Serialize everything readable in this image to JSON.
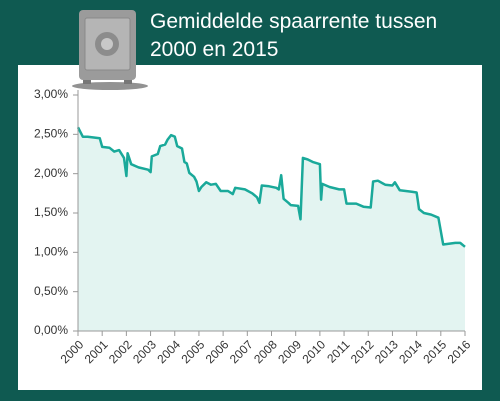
{
  "chart_data": {
    "type": "area",
    "title": "Gemiddelde spaarrente tussen 2000 en 2015",
    "x": [
      2000.0,
      2000.2,
      2000.4,
      2000.9,
      2001.0,
      2001.3,
      2001.5,
      2001.7,
      2001.9,
      2002.0,
      2002.05,
      2002.2,
      2002.5,
      2002.9,
      2003.0,
      2003.05,
      2003.3,
      2003.4,
      2003.6,
      2003.7,
      2003.85,
      2004.0,
      2004.1,
      2004.3,
      2004.4,
      2004.5,
      2004.6,
      2004.8,
      2004.9,
      2005.0,
      2005.1,
      2005.3,
      2005.5,
      2005.7,
      2005.9,
      2006.2,
      2006.4,
      2006.5,
      2006.9,
      2007.2,
      2007.4,
      2007.5,
      2007.6,
      2007.9,
      2008.2,
      2008.3,
      2008.4,
      2008.5,
      2008.7,
      2008.8,
      2009.1,
      2009.2,
      2009.3,
      2009.5,
      2009.7,
      2009.9,
      2010.0,
      2010.05,
      2010.1,
      2010.4,
      2010.8,
      2011.0,
      2011.1,
      2011.5,
      2011.8,
      2012.1,
      2012.2,
      2012.4,
      2012.7,
      2013.0,
      2013.1,
      2013.3,
      2013.8,
      2014.0,
      2014.05,
      2014.1,
      2014.3,
      2014.6,
      2014.9,
      2015.1,
      2015.6,
      2015.8,
      2016.0
    ],
    "values": [
      2.59,
      2.47,
      2.47,
      2.45,
      2.34,
      2.33,
      2.28,
      2.3,
      2.2,
      1.97,
      2.26,
      2.12,
      2.08,
      2.05,
      2.02,
      2.22,
      2.25,
      2.35,
      2.37,
      2.43,
      2.49,
      2.47,
      2.35,
      2.32,
      2.15,
      2.13,
      2.01,
      1.96,
      1.9,
      1.78,
      1.83,
      1.89,
      1.86,
      1.87,
      1.78,
      1.78,
      1.74,
      1.82,
      1.8,
      1.75,
      1.7,
      1.63,
      1.85,
      1.84,
      1.82,
      1.8,
      1.98,
      1.68,
      1.63,
      1.6,
      1.59,
      1.42,
      2.2,
      2.18,
      2.15,
      2.13,
      2.12,
      1.67,
      1.87,
      1.83,
      1.8,
      1.8,
      1.62,
      1.62,
      1.58,
      1.57,
      1.9,
      1.91,
      1.86,
      1.85,
      1.89,
      1.79,
      1.77,
      1.76,
      1.66,
      1.55,
      1.5,
      1.48,
      1.44,
      1.1,
      1.12,
      1.12,
      1.07
    ],
    "color": "#1aa99a",
    "fill": "#e3f4f1",
    "xlim": [
      2000,
      2016
    ],
    "xticks": [
      2000,
      2001,
      2002,
      2003,
      2004,
      2005,
      2006,
      2007,
      2008,
      2009,
      2010,
      2011,
      2012,
      2013,
      2014,
      2015,
      2016
    ],
    "ylim": [
      0,
      3
    ],
    "yticks": [
      {
        "value": 0,
        "label": "0,00%"
      },
      {
        "value": 0.5,
        "label": "0,50%"
      },
      {
        "value": 1,
        "label": "1,00%"
      },
      {
        "value": 1.5,
        "label": "1,50%"
      },
      {
        "value": 2,
        "label": "2,00%"
      },
      {
        "value": 2.5,
        "label": "2,50%"
      },
      {
        "value": 3,
        "label": "3,00%"
      }
    ],
    "grid": false
  }
}
